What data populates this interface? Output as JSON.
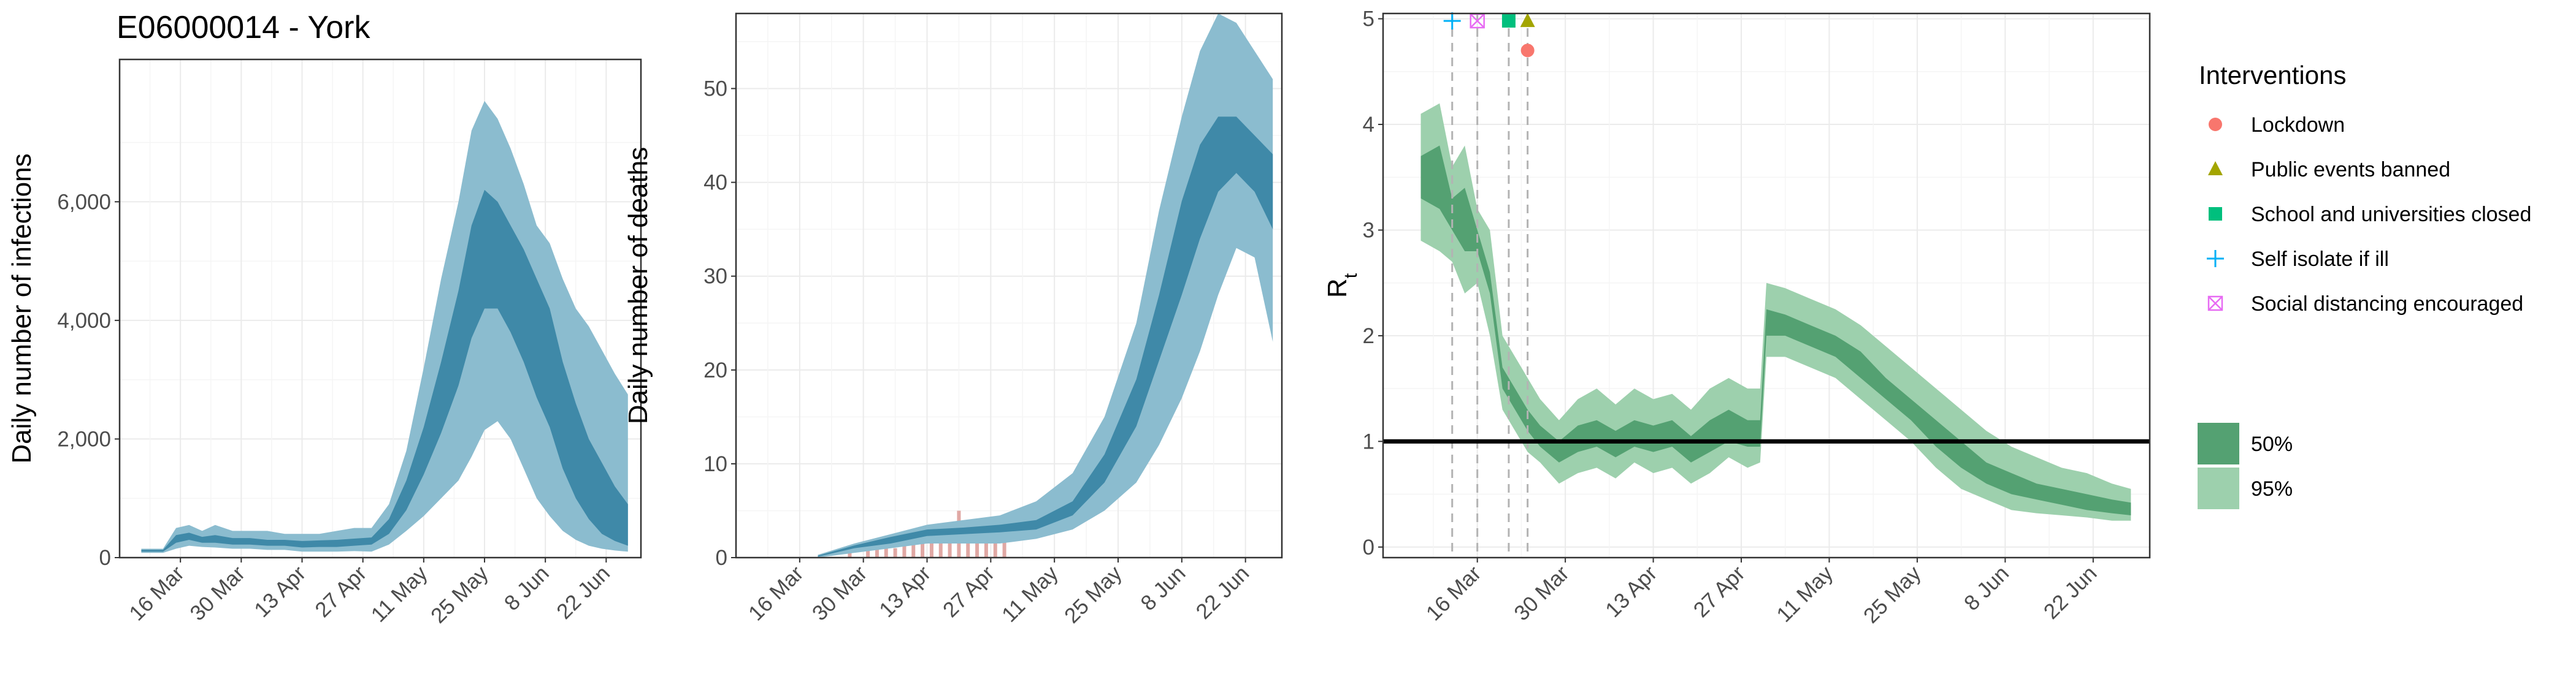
{
  "title": "E06000014 - York",
  "colors": {
    "blue_95": "#8bbccf",
    "blue_50": "#3f89a8",
    "green_95": "#9dd0ad",
    "green_50": "#54a172",
    "bar": "#e0a8a4",
    "grid_major": "#ebebeb",
    "grid_minor": "#f5f5f5"
  },
  "chart_data": [
    {
      "type": "area",
      "panel": "infections",
      "ylabel": "Daily number of infections",
      "xlabel": "",
      "x_ticks": [
        "16 Mar",
        "30 Mar",
        "13 Apr",
        "27 Apr",
        "11 May",
        "25 May",
        "8 Jun",
        "22 Jun"
      ],
      "y_ticks": [
        "0",
        "2,000",
        "4,000",
        "6,000"
      ],
      "ylim": [
        0,
        8400
      ],
      "xlim": [
        "2020-03-02",
        "2020-06-30"
      ],
      "grid": true,
      "series": [
        {
          "name": "95%",
          "x": [
            "2020-03-07",
            "2020-03-12",
            "2020-03-15",
            "2020-03-18",
            "2020-03-21",
            "2020-03-24",
            "2020-03-28",
            "2020-04-01",
            "2020-04-05",
            "2020-04-09",
            "2020-04-13",
            "2020-04-17",
            "2020-04-21",
            "2020-04-25",
            "2020-04-29",
            "2020-05-03",
            "2020-05-07",
            "2020-05-11",
            "2020-05-15",
            "2020-05-19",
            "2020-05-22",
            "2020-05-25",
            "2020-05-28",
            "2020-05-31",
            "2020-06-03",
            "2020-06-06",
            "2020-06-09",
            "2020-06-12",
            "2020-06-15",
            "2020-06-18",
            "2020-06-21",
            "2020-06-24",
            "2020-06-27"
          ],
          "lower": [
            80,
            80,
            150,
            200,
            180,
            170,
            150,
            150,
            130,
            130,
            100,
            100,
            100,
            110,
            100,
            220,
            450,
            700,
            1000,
            1300,
            1700,
            2150,
            2300,
            2000,
            1500,
            1000,
            700,
            450,
            300,
            200,
            150,
            120,
            100
          ],
          "upper": [
            150,
            150,
            500,
            550,
            450,
            550,
            450,
            450,
            450,
            400,
            400,
            400,
            450,
            500,
            500,
            900,
            1800,
            3200,
            4700,
            6000,
            7200,
            7700,
            7400,
            6900,
            6300,
            5600,
            5300,
            4700,
            4200,
            3900,
            3500,
            3100,
            2750
          ]
        },
        {
          "name": "50%",
          "x": [
            "2020-03-07",
            "2020-03-12",
            "2020-03-15",
            "2020-03-18",
            "2020-03-21",
            "2020-03-24",
            "2020-03-28",
            "2020-04-01",
            "2020-04-05",
            "2020-04-09",
            "2020-04-13",
            "2020-04-17",
            "2020-04-21",
            "2020-04-25",
            "2020-04-29",
            "2020-05-03",
            "2020-05-07",
            "2020-05-11",
            "2020-05-15",
            "2020-05-19",
            "2020-05-22",
            "2020-05-25",
            "2020-05-28",
            "2020-05-31",
            "2020-06-03",
            "2020-06-06",
            "2020-06-09",
            "2020-06-12",
            "2020-06-15",
            "2020-06-18",
            "2020-06-21",
            "2020-06-24",
            "2020-06-27"
          ],
          "lower": [
            100,
            100,
            250,
            300,
            250,
            250,
            220,
            220,
            200,
            200,
            170,
            180,
            180,
            200,
            220,
            400,
            800,
            1400,
            2100,
            2900,
            3700,
            4200,
            4200,
            3800,
            3300,
            2700,
            2200,
            1500,
            1000,
            650,
            400,
            280,
            200
          ],
          "upper": [
            130,
            130,
            380,
            420,
            350,
            380,
            330,
            330,
            300,
            300,
            280,
            290,
            300,
            320,
            340,
            650,
            1300,
            2200,
            3300,
            4500,
            5600,
            6200,
            6000,
            5600,
            5200,
            4700,
            4200,
            3300,
            2600,
            2000,
            1600,
            1200,
            900
          ]
        }
      ]
    },
    {
      "type": "area",
      "panel": "deaths",
      "ylabel": "Daily number of deaths",
      "xlabel": "",
      "x_ticks": [
        "16 Mar",
        "30 Mar",
        "13 Apr",
        "27 Apr",
        "11 May",
        "25 May",
        "8 Jun",
        "22 Jun"
      ],
      "y_ticks": [
        "0",
        "10",
        "20",
        "30",
        "40",
        "50"
      ],
      "ylim": [
        0,
        58
      ],
      "xlim": [
        "2020-03-02",
        "2020-06-30"
      ],
      "grid": true,
      "observed_deaths": {
        "x": [
          "2020-03-27",
          "2020-03-31",
          "2020-04-02",
          "2020-04-04",
          "2020-04-06",
          "2020-04-08",
          "2020-04-10",
          "2020-04-12",
          "2020-04-14",
          "2020-04-16",
          "2020-04-18",
          "2020-04-20",
          "2020-04-22",
          "2020-04-24",
          "2020-04-26",
          "2020-04-28",
          "2020-04-30"
        ],
        "y": [
          1,
          1,
          1,
          2,
          1,
          2,
          2,
          3,
          2,
          2,
          3,
          5,
          2,
          3,
          2,
          2,
          3
        ]
      },
      "series": [
        {
          "name": "95%",
          "x": [
            "2020-03-20",
            "2020-03-28",
            "2020-04-05",
            "2020-04-13",
            "2020-04-21",
            "2020-04-29",
            "2020-05-07",
            "2020-05-15",
            "2020-05-22",
            "2020-05-29",
            "2020-06-03",
            "2020-06-08",
            "2020-06-12",
            "2020-06-16",
            "2020-06-20",
            "2020-06-24",
            "2020-06-28"
          ],
          "lower": [
            0,
            0.5,
            1,
            1.5,
            1.5,
            1.5,
            2,
            3,
            5,
            8,
            12,
            17,
            22,
            28,
            33,
            32,
            23
          ],
          "upper": [
            0.3,
            1.5,
            2.5,
            3.5,
            4,
            4.5,
            6,
            9,
            15,
            25,
            37,
            47,
            54,
            58,
            57,
            54,
            51
          ]
        },
        {
          "name": "50%",
          "x": [
            "2020-03-20",
            "2020-03-28",
            "2020-04-05",
            "2020-04-13",
            "2020-04-21",
            "2020-04-29",
            "2020-05-07",
            "2020-05-15",
            "2020-05-22",
            "2020-05-29",
            "2020-06-03",
            "2020-06-08",
            "2020-06-12",
            "2020-06-16",
            "2020-06-20",
            "2020-06-24",
            "2020-06-28"
          ],
          "lower": [
            0.1,
            1,
            1.5,
            2.3,
            2.5,
            2.7,
            3,
            4.5,
            8,
            14,
            21,
            28,
            34,
            39,
            41,
            39,
            35
          ],
          "upper": [
            0.2,
            1.3,
            2.2,
            3,
            3.2,
            3.5,
            4,
            6,
            11,
            19,
            28,
            38,
            44,
            47,
            47,
            45,
            43
          ]
        }
      ]
    },
    {
      "type": "area",
      "panel": "rt",
      "ylabel": "R",
      "ylabel_subscript": "t",
      "xlabel": "",
      "x_ticks": [
        "16 Mar",
        "30 Mar",
        "13 Apr",
        "27 Apr",
        "11 May",
        "25 May",
        "8 Jun",
        "22 Jun"
      ],
      "y_ticks": [
        "0",
        "1",
        "2",
        "3",
        "4",
        "5"
      ],
      "ylim": [
        -0.1,
        5.05
      ],
      "xlim": [
        "2020-03-01",
        "2020-07-01"
      ],
      "grid": true,
      "reference_line": 1,
      "intervention_dates": [
        "2020-03-12",
        "2020-03-16",
        "2020-03-21",
        "2020-03-24"
      ],
      "intervention_markers": [
        {
          "name": "Self isolate if ill",
          "x": "2020-03-12",
          "y": 4.98
        },
        {
          "name": "Social distancing encouraged",
          "x": "2020-03-16",
          "y": 4.98
        },
        {
          "name": "School and universities closed",
          "x": "2020-03-21",
          "y": 4.98
        },
        {
          "name": "Public events banned",
          "x": "2020-03-24",
          "y": 4.98
        },
        {
          "name": "Lockdown",
          "x": "2020-03-24",
          "y": 4.7
        }
      ],
      "series": [
        {
          "name": "95%",
          "x": [
            "2020-03-07",
            "2020-03-10",
            "2020-03-12",
            "2020-03-14",
            "2020-03-16",
            "2020-03-18",
            "2020-03-20",
            "2020-03-22",
            "2020-03-24",
            "2020-03-26",
            "2020-03-29",
            "2020-04-01",
            "2020-04-04",
            "2020-04-07",
            "2020-04-10",
            "2020-04-13",
            "2020-04-16",
            "2020-04-19",
            "2020-04-22",
            "2020-04-25",
            "2020-04-28",
            "2020-04-30",
            "2020-05-01",
            "2020-05-04",
            "2020-05-08",
            "2020-05-12",
            "2020-05-16",
            "2020-05-20",
            "2020-05-24",
            "2020-05-28",
            "2020-06-01",
            "2020-06-05",
            "2020-06-09",
            "2020-06-13",
            "2020-06-17",
            "2020-06-21",
            "2020-06-25",
            "2020-06-28"
          ],
          "lower": [
            2.9,
            2.8,
            2.7,
            2.4,
            2.5,
            2.0,
            1.3,
            1.1,
            0.9,
            0.8,
            0.6,
            0.7,
            0.75,
            0.65,
            0.8,
            0.7,
            0.75,
            0.6,
            0.7,
            0.85,
            0.75,
            0.8,
            1.8,
            1.8,
            1.7,
            1.6,
            1.4,
            1.2,
            1.0,
            0.75,
            0.55,
            0.45,
            0.35,
            0.32,
            0.3,
            0.28,
            0.25,
            0.25
          ],
          "upper": [
            4.1,
            4.2,
            3.6,
            3.8,
            3.2,
            3.0,
            2.0,
            1.8,
            1.6,
            1.4,
            1.2,
            1.4,
            1.5,
            1.35,
            1.5,
            1.4,
            1.45,
            1.3,
            1.5,
            1.6,
            1.5,
            1.5,
            2.5,
            2.45,
            2.35,
            2.25,
            2.1,
            1.9,
            1.7,
            1.5,
            1.3,
            1.1,
            0.95,
            0.85,
            0.75,
            0.7,
            0.6,
            0.55
          ]
        },
        {
          "name": "50%",
          "x": [
            "2020-03-07",
            "2020-03-10",
            "2020-03-12",
            "2020-03-14",
            "2020-03-16",
            "2020-03-18",
            "2020-03-20",
            "2020-03-22",
            "2020-03-24",
            "2020-03-26",
            "2020-03-29",
            "2020-04-01",
            "2020-04-04",
            "2020-04-07",
            "2020-04-10",
            "2020-04-13",
            "2020-04-16",
            "2020-04-19",
            "2020-04-22",
            "2020-04-25",
            "2020-04-28",
            "2020-04-30",
            "2020-05-01",
            "2020-05-04",
            "2020-05-08",
            "2020-05-12",
            "2020-05-16",
            "2020-05-20",
            "2020-05-24",
            "2020-05-28",
            "2020-06-01",
            "2020-06-05",
            "2020-06-09",
            "2020-06-13",
            "2020-06-17",
            "2020-06-21",
            "2020-06-25",
            "2020-06-28"
          ],
          "lower": [
            3.3,
            3.2,
            3.0,
            2.8,
            2.8,
            2.4,
            1.5,
            1.3,
            1.1,
            0.95,
            0.8,
            0.9,
            0.95,
            0.85,
            0.95,
            0.9,
            0.95,
            0.8,
            0.9,
            1.0,
            0.95,
            0.95,
            2.0,
            2.0,
            1.9,
            1.8,
            1.6,
            1.4,
            1.2,
            0.95,
            0.75,
            0.6,
            0.5,
            0.45,
            0.4,
            0.35,
            0.32,
            0.3
          ],
          "upper": [
            3.7,
            3.8,
            3.3,
            3.4,
            3.0,
            2.6,
            1.7,
            1.5,
            1.3,
            1.15,
            1.0,
            1.15,
            1.2,
            1.1,
            1.2,
            1.15,
            1.2,
            1.05,
            1.2,
            1.3,
            1.2,
            1.2,
            2.25,
            2.2,
            2.1,
            2.0,
            1.85,
            1.6,
            1.4,
            1.2,
            1.0,
            0.8,
            0.7,
            0.6,
            0.55,
            0.5,
            0.45,
            0.42
          ]
        }
      ]
    }
  ],
  "legend": {
    "interventions_title": "Interventions",
    "interventions": [
      {
        "label": "Lockdown",
        "shape": "circle",
        "color": "#f8766d"
      },
      {
        "label": "Public events banned",
        "shape": "triangle",
        "color": "#a3a500"
      },
      {
        "label": "School and universities closed",
        "shape": "square",
        "color": "#00bf7d"
      },
      {
        "label": "Self isolate if ill",
        "shape": "plus",
        "color": "#00b0f6"
      },
      {
        "label": "Social distancing encouraged",
        "shape": "boxx",
        "color": "#e76bf3"
      }
    ],
    "bands": [
      {
        "label": "50%",
        "color": "#54a172"
      },
      {
        "label": "95%",
        "color": "#9dd0ad"
      }
    ]
  }
}
